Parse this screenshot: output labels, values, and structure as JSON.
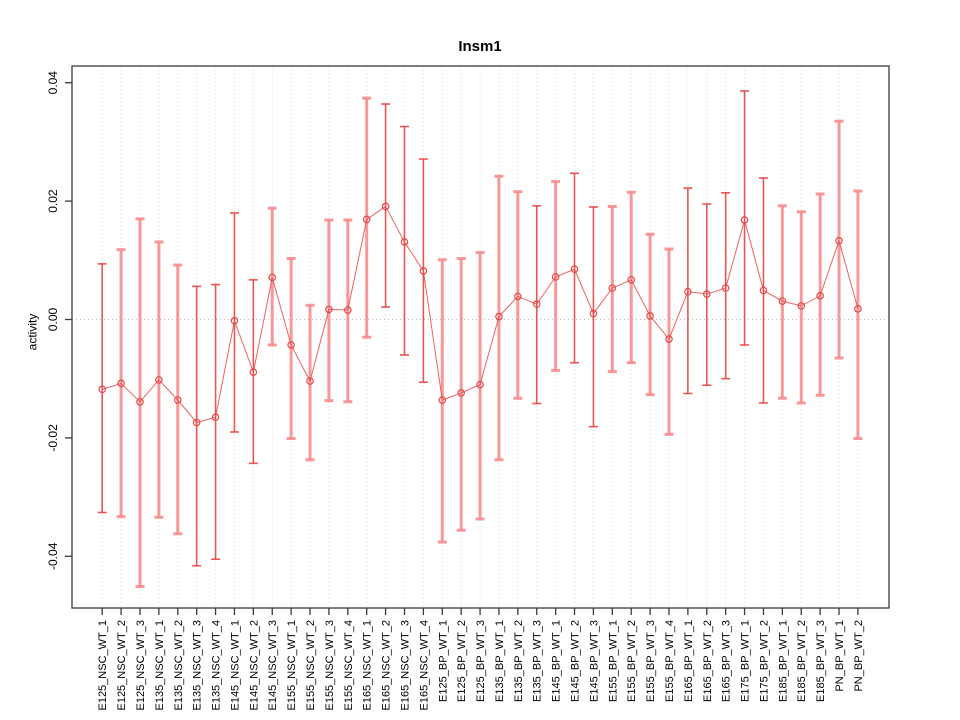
{
  "chart_data": {
    "type": "scatter",
    "title": "Insm1",
    "ylabel": "activity",
    "xlabel": "",
    "ylim": [
      -0.046,
      0.041
    ],
    "grid": "vertical-dotted-per-category, dotted zero line",
    "legend": "none",
    "yticks": [
      0.04,
      0.02,
      0.0,
      -0.02,
      -0.04
    ],
    "ytick_labels": [
      "0.04",
      "0.02",
      "0.00",
      "-0.02",
      "-0.04"
    ],
    "categories": [
      "E125_NSC_WT_1",
      "E125_NSC_WT_2",
      "E125_NSC_WT_3",
      "E135_NSC_WT_1",
      "E135_NSC_WT_2",
      "E135_NSC_WT_3",
      "E135_NSC_WT_4",
      "E145_NSC_WT_1",
      "E145_NSC_WT_2",
      "E145_NSC_WT_3",
      "E155_NSC_WT_1",
      "E155_NSC_WT_2",
      "E155_NSC_WT_3",
      "E155_NSC_WT_4",
      "E165_NSC_WT_1",
      "E165_NSC_WT_2",
      "E165_NSC_WT_3",
      "E165_NSC_WT_4",
      "E125_BP_WT_1",
      "E125_BP_WT_2",
      "E125_BP_WT_3",
      "E135_BP_WT_1",
      "E135_BP_WT_2",
      "E135_BP_WT_3",
      "E145_BP_WT_1",
      "E145_BP_WT_2",
      "E145_BP_WT_3",
      "E155_BP_WT_1",
      "E155_BP_WT_2",
      "E155_BP_WT_3",
      "E155_BP_WT_4",
      "E165_BP_WT_1",
      "E165_BP_WT_2",
      "E165_BP_WT_3",
      "E175_BP_WT_1",
      "E175_BP_WT_2",
      "E185_BP_WT_1",
      "E185_BP_WT_2",
      "E185_BP_WT_3",
      "PN_BP_WT_1",
      "PN_BP_WT_2"
    ],
    "series": [
      {
        "name": "activity",
        "values": [
          -0.0118,
          -0.0108,
          -0.0139,
          -0.0102,
          -0.0136,
          -0.0174,
          -0.0165,
          -0.0002,
          -0.0089,
          0.0071,
          -0.0043,
          -0.0104,
          0.0017,
          0.0016,
          0.0169,
          0.0191,
          0.0131,
          0.0082,
          -0.0136,
          -0.0124,
          -0.011,
          0.0005,
          0.0039,
          0.0026,
          0.0072,
          0.0085,
          0.001,
          0.0053,
          0.0067,
          0.0006,
          -0.0033,
          0.0047,
          0.0043,
          0.0053,
          0.0168,
          0.0049,
          0.0031,
          0.0023,
          0.004,
          0.0133,
          0.0018
        ],
        "error_low": [
          -0.0326,
          -0.0333,
          -0.0451,
          -0.0334,
          -0.0362,
          -0.0416,
          -0.0405,
          -0.019,
          -0.0243,
          -0.0043,
          -0.0201,
          -0.0237,
          -0.0137,
          -0.0139,
          -0.003,
          0.0021,
          -0.006,
          -0.0106,
          -0.0376,
          -0.0356,
          -0.0337,
          -0.0237,
          -0.0133,
          -0.0142,
          -0.0086,
          -0.0073,
          -0.0181,
          -0.0088,
          -0.0073,
          -0.0127,
          -0.0194,
          -0.0125,
          -0.0111,
          -0.01,
          -0.0043,
          -0.0141,
          -0.0133,
          -0.0141,
          -0.0128,
          -0.0065,
          -0.0201
        ],
        "error_high": [
          0.0094,
          0.0118,
          0.017,
          0.0131,
          0.0092,
          0.0056,
          0.0059,
          0.018,
          0.0067,
          0.0188,
          0.0103,
          0.0024,
          0.0168,
          0.0168,
          0.0374,
          0.0364,
          0.0326,
          0.0271,
          0.0101,
          0.0103,
          0.0113,
          0.0242,
          0.0216,
          0.0192,
          0.0233,
          0.0247,
          0.019,
          0.0191,
          0.0215,
          0.0144,
          0.0119,
          0.0222,
          0.0195,
          0.0214,
          0.0386,
          0.0239,
          0.0192,
          0.0182,
          0.0212,
          0.0335,
          0.0217
        ],
        "bar_shade": [
          "dark",
          "light",
          "light",
          "light",
          "light",
          "dark",
          "dark",
          "dark",
          "dark",
          "light",
          "light",
          "light",
          "light",
          "light",
          "light",
          "dark",
          "dark",
          "dark",
          "light",
          "light",
          "light",
          "light",
          "light",
          "dark",
          "light",
          "dark",
          "dark",
          "light",
          "light",
          "light",
          "light",
          "dark",
          "dark",
          "dark",
          "dark",
          "dark",
          "light",
          "light",
          "light",
          "light",
          "light"
        ]
      }
    ],
    "colors": {
      "point_stroke": "#e84848",
      "connect_line": "rgba(232,72,72,0.85)",
      "bar_dark": "rgba(230,58,58,0.85)",
      "bar_light": "rgba(248,138,138,0.88)",
      "gridline": "#d8d8d8",
      "zero_line": "#bdbdbd",
      "frame": "#3a3a3a",
      "tick_text": "#000000"
    }
  }
}
